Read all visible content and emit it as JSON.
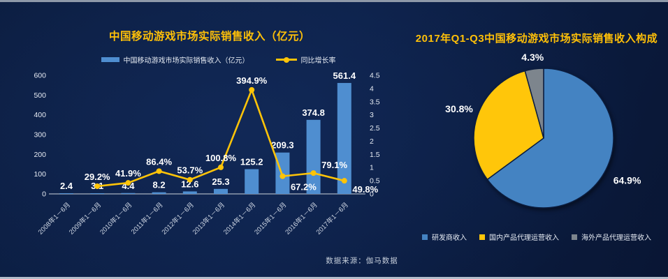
{
  "source_note": "数据来源：伽马数据",
  "colors": {
    "background": "#0b1d3f",
    "title_yellow": "#ffc008",
    "bar_blue": "#4f8ed0",
    "line_yellow": "#ffc408",
    "axis_text": "#e6ebf3",
    "x_label_text": "#cfd7e4",
    "data_label_white": "#ffffff",
    "baseline_gray": "#a8b2c0",
    "edge_top": "#8e99a9",
    "edge_bottom": "#b3bdcb"
  },
  "chart_data": [
    {
      "type": "bar+line",
      "title": "中国移动游戏市场实际销售收入（亿元）",
      "categories": [
        "2008年1－6月",
        "2009年1－6月",
        "2010年1－6月",
        "2011年1－6月",
        "2012年1－6月",
        "2013年1－6月",
        "2014年1－6月",
        "2015年1－6月",
        "2016年1－6月",
        "2017年1－6月"
      ],
      "series": [
        {
          "name": "中国移动游戏市场实际销售收入（亿元）",
          "type": "bar",
          "axis": "left",
          "values": [
            2.4,
            3.1,
            4.4,
            8.2,
            12.6,
            25.3,
            125.2,
            209.3,
            374.8,
            561.4
          ]
        },
        {
          "name": "同比增长率",
          "type": "line",
          "axis": "right",
          "unit": "%",
          "values": [
            null,
            29.2,
            41.9,
            86.4,
            53.7,
            100.8,
            394.9,
            67.2,
            79.1,
            49.8
          ],
          "label_placement": [
            null,
            "above",
            "above",
            "above",
            "above",
            "above",
            "above",
            "below",
            "above-right",
            "below-right"
          ]
        }
      ],
      "left_axis": {
        "min": 0,
        "max": 600,
        "step": 100
      },
      "right_axis": {
        "min": 0,
        "max": 4.5,
        "step": 0.5
      },
      "grid": false,
      "legend_position": "top"
    },
    {
      "type": "pie",
      "title": "2017年Q1-Q3中国移动游戏市场实际销售收入构成",
      "start_angle": "top",
      "direction": "clockwise",
      "legend_position": "bottom",
      "slices": [
        {
          "label": "研发商收入",
          "value": 64.9,
          "color": "#4483c2"
        },
        {
          "label": "国内产品代理运营收入",
          "value": 30.8,
          "color": "#ffc60a"
        },
        {
          "label": "海外产品代理运营收入",
          "value": 4.3,
          "color": "#7d858d"
        }
      ]
    }
  ]
}
